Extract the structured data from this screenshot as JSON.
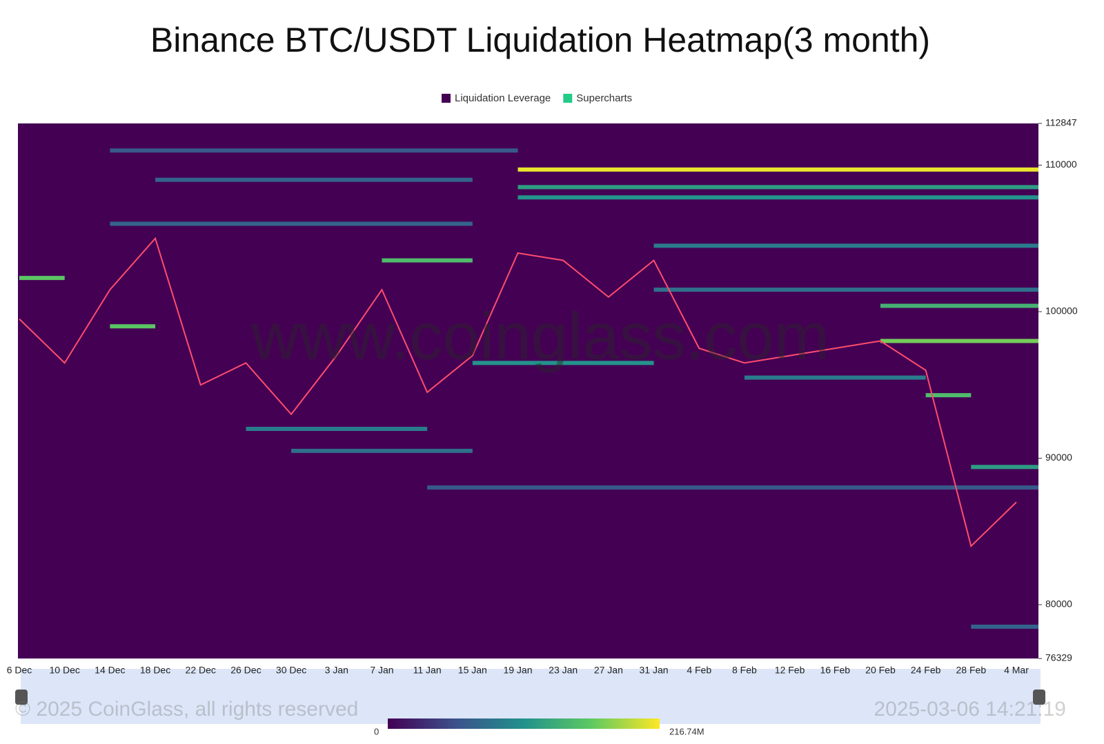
{
  "chart_data": {
    "type": "heatmap",
    "title": "Binance BTC/USDT Liquidation Heatmap(3 month)",
    "legend": [
      {
        "name": "Liquidation Leverage",
        "color": "#440154"
      },
      {
        "name": "Supercharts",
        "color": "#22cc88"
      }
    ],
    "categories": [
      "6 Dec",
      "10 Dec",
      "14 Dec",
      "18 Dec",
      "22 Dec",
      "26 Dec",
      "30 Dec",
      "3 Jan",
      "7 Jan",
      "11 Jan",
      "15 Jan",
      "19 Jan",
      "23 Jan",
      "27 Jan",
      "31 Jan",
      "4 Feb",
      "8 Feb",
      "12 Feb",
      "16 Feb",
      "20 Feb",
      "24 Feb",
      "28 Feb",
      "4 Mar"
    ],
    "series": [
      {
        "color": "#ff4d6d",
        "values": [
          99500,
          96500,
          101500,
          105000,
          95000,
          96500,
          93000,
          97000,
          101500,
          94500,
          97000,
          104000,
          103500,
          101000,
          103500,
          97500,
          96500,
          97000,
          97500,
          98000,
          96000,
          84000,
          87000
        ]
      }
    ],
    "bands": [
      {
        "y": 111000,
        "from": "14 Dec",
        "to": "19 Jan",
        "value": 60000000
      },
      {
        "y": 109000,
        "from": "18 Dec",
        "to": "15 Jan",
        "value": 70000000
      },
      {
        "y": 106000,
        "from": "14 Dec",
        "to": "15 Jan",
        "value": 70000000
      },
      {
        "y": 108500,
        "from": "19 Jan",
        "to": "4 Mar",
        "value": 120000000
      },
      {
        "y": 107800,
        "from": "19 Jan",
        "to": "4 Mar",
        "value": 110000000
      },
      {
        "y": 104500,
        "from": "31 Jan",
        "to": "4 Mar",
        "value": 90000000
      },
      {
        "y": 101500,
        "from": "31 Jan",
        "to": "4 Mar",
        "value": 80000000
      },
      {
        "y": 103500,
        "from": "7 Jan",
        "to": "15 Jan",
        "value": 150000000
      },
      {
        "y": 102300,
        "from": "6 Dec",
        "to": "10 Dec",
        "value": 160000000
      },
      {
        "y": 99000,
        "from": "14 Dec",
        "to": "18 Dec",
        "value": 160000000
      },
      {
        "y": 96500,
        "from": "15 Jan",
        "to": "31 Jan",
        "value": 110000000
      },
      {
        "y": 95500,
        "from": "8 Feb",
        "to": "24 Feb",
        "value": 90000000
      },
      {
        "y": 92000,
        "from": "26 Dec",
        "to": "11 Jan",
        "value": 90000000
      },
      {
        "y": 90500,
        "from": "30 Dec",
        "to": "15 Jan",
        "value": 80000000
      },
      {
        "y": 88000,
        "from": "11 Jan",
        "to": "4 Mar",
        "value": 60000000
      },
      {
        "y": 100400,
        "from": "20 Feb",
        "to": "4 Mar",
        "value": 140000000
      },
      {
        "y": 98000,
        "from": "20 Feb",
        "to": "4 Mar",
        "value": 170000000
      },
      {
        "y": 94300,
        "from": "24 Feb",
        "to": "28 Feb",
        "value": 150000000
      },
      {
        "y": 89400,
        "from": "28 Feb",
        "to": "4 Mar",
        "value": 120000000
      },
      {
        "y": 78500,
        "from": "28 Feb",
        "to": "4 Mar",
        "value": 70000000
      },
      {
        "y": 109700,
        "from": "19 Jan",
        "to": "4 Mar",
        "value": 210000000
      }
    ],
    "ylim": [
      76329,
      112847
    ],
    "yticks": [
      76329,
      80000,
      90000,
      100000,
      110000,
      112847
    ],
    "colorbar": [
      0,
      {
        "value": 216740000,
        "label": "216.74M"
      }
    ],
    "watermark": "www.coinglass.com",
    "copyright": "© 2025 CoinGlass, all rights reserved",
    "timestamp": "2025-03-06 14:21:19"
  }
}
